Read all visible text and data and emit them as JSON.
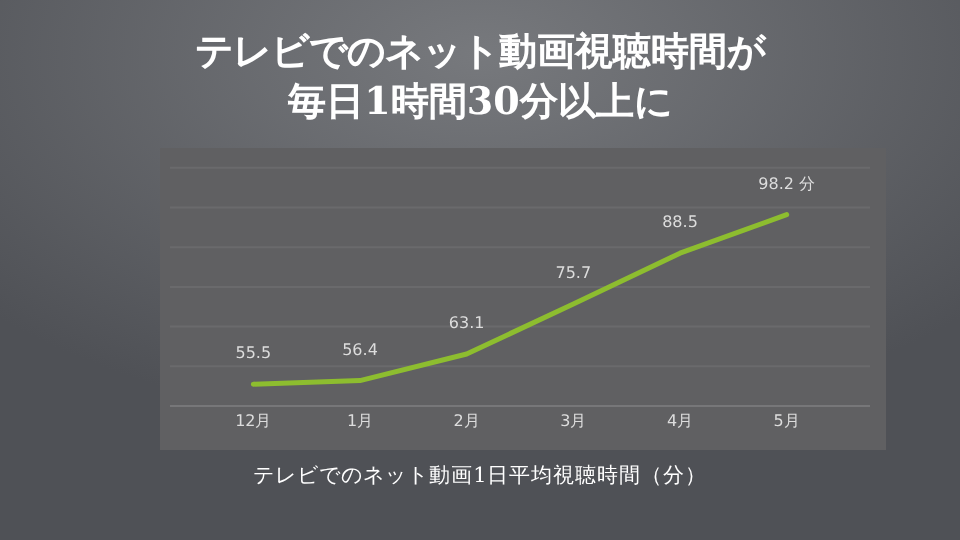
{
  "chart_data": {
    "type": "line",
    "title": "テレビでのネット動画視聴時間が毎日1時間30分以上に",
    "xlabel": "テレビでのネット動画1日平均視聴時間（分）",
    "categories": [
      "12月",
      "1月",
      "2月",
      "3月",
      "4月",
      "5月"
    ],
    "series": [
      {
        "color": "#8dbd2f",
        "values": [
          55.5,
          56.4,
          63.1,
          75.7,
          88.5,
          98.2
        ],
        "value_labels": [
          "55.5",
          "56.4",
          "63.1",
          "75.7",
          "88.5",
          "98.2 分"
        ]
      }
    ],
    "ylim": [
      50,
      115
    ],
    "yticks": [
      {
        "value": 50,
        "label": null
      },
      {
        "value": 60,
        "label": null
      },
      {
        "value": 70,
        "label": null
      },
      {
        "value": 80,
        "label": null
      },
      {
        "value": 90,
        "label": null
      },
      {
        "value": 100,
        "label": null
      },
      {
        "value": 110,
        "label": null
      }
    ],
    "grid": "y",
    "marker": "none",
    "line_style": "solid"
  }
}
